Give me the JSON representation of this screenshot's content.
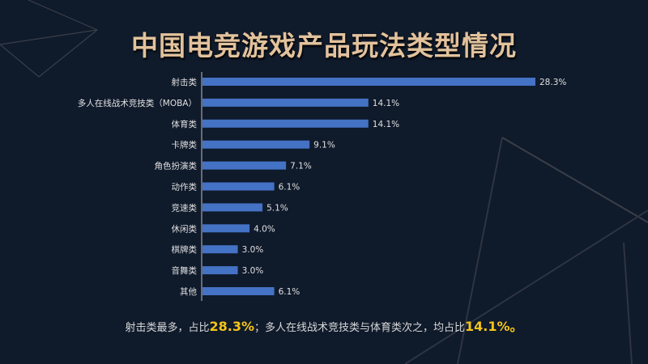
{
  "title": "中国电竞游戏产品玩法类型情况",
  "chart_data": {
    "type": "bar",
    "orientation": "horizontal",
    "categories": [
      "射击类",
      "多人在线战术竞技类（MOBA）",
      "体育类",
      "卡牌类",
      "角色扮演类",
      "动作类",
      "竞速类",
      "休闲类",
      "棋牌类",
      "音舞类",
      "其他"
    ],
    "values": [
      28.3,
      14.1,
      14.1,
      9.1,
      7.1,
      6.1,
      5.1,
      4.0,
      3.0,
      3.0,
      6.1
    ],
    "labels": [
      "28.3%",
      "14.1%",
      "14.1%",
      "9.1%",
      "7.1%",
      "6.1%",
      "5.1%",
      "4.0%",
      "3.0%",
      "3.0%",
      "6.1%"
    ],
    "bar_color": "#4472c4",
    "grid": false
  },
  "summary": {
    "part1": "射击类最多，占比",
    "value1": "28.3%",
    "part2": "；多人在线战术竞技类与体育类次之，均占比",
    "value2": "14.1%",
    "part3": "。"
  },
  "colors": {
    "background": "#0f1a2b",
    "title": "#e2c29c",
    "highlight": "#f5c518"
  }
}
